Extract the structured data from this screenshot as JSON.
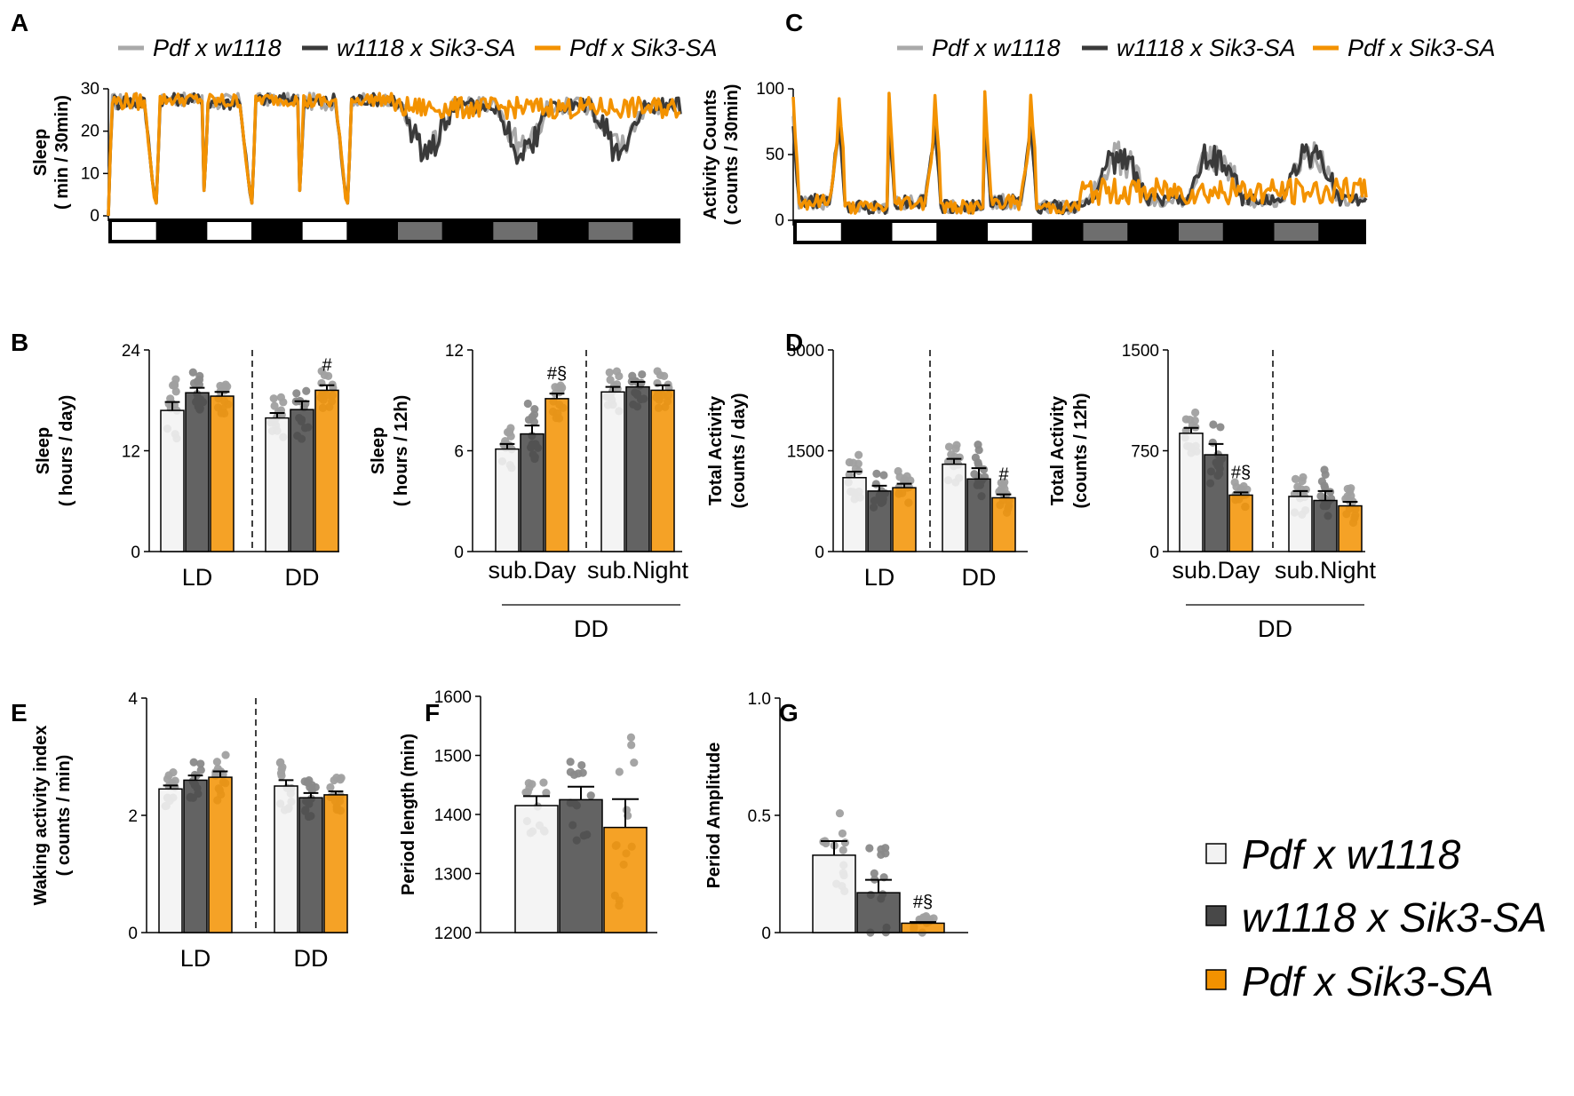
{
  "colors": {
    "pdf_w1118": "#f2f2f2",
    "w1118_sik3": "#484848",
    "pdf_sik3": "#f39200",
    "line_pdf_w1118": "#a9a9a9",
    "line_w1118_sik3": "#3a3a3a",
    "line_pdf_sik3": "#f39200",
    "dots_light": "#a0a0a0",
    "dots_dark": "#8a8a8a",
    "lightphase": "#ffffff",
    "darkphase": "#000000",
    "subjective_day": "#6e6e6e"
  },
  "panel_labels": [
    "A",
    "B",
    "C",
    "D",
    "E",
    "F",
    "G"
  ],
  "legend": {
    "genotypes": [
      "Pdf x w1118",
      "w1118 x Sik3-SA",
      "Pdf x Sik3-SA"
    ]
  },
  "chart_data": [
    {
      "id": "A",
      "type": "line",
      "title": "Sleep",
      "ylabel": "( min / 30min)",
      "ylim": [
        0,
        30
      ],
      "yticks": [
        "0",
        "10",
        "20",
        "30"
      ],
      "days_LD": 3,
      "days_DD": 3,
      "points_per_day": 48,
      "series": [
        {
          "name": "Pdf x w1118"
        },
        {
          "name": "w1118 x Sik3-SA"
        },
        {
          "name": "Pdf x Sik3-SA"
        }
      ]
    },
    {
      "id": "C",
      "type": "line",
      "title": "Activity Counts",
      "ylabel": "( counts / 30min)",
      "ylim": [
        0,
        100
      ],
      "yticks": [
        "0",
        "50",
        "100"
      ],
      "days_LD": 3,
      "days_DD": 3,
      "points_per_day": 48,
      "series": [
        {
          "name": "Pdf x w1118"
        },
        {
          "name": "w1118 x Sik3-SA"
        },
        {
          "name": "Pdf x Sik3-SA"
        }
      ]
    },
    {
      "id": "B1",
      "type": "bar",
      "title": "Sleep",
      "ylabel": "( hours / day)",
      "ylim": [
        0,
        24
      ],
      "yticks": [
        "0",
        "12",
        "24"
      ],
      "groups": [
        "LD",
        "DD"
      ],
      "series_names": [
        "Pdf x w1118",
        "w1118 x Sik3-SA",
        "Pdf x Sik3-SA"
      ],
      "values": [
        [
          16.8,
          18.9,
          18.5
        ],
        [
          15.9,
          16.9,
          19.2
        ]
      ],
      "sem": [
        [
          1.0,
          0.6,
          0.5
        ],
        [
          0.6,
          1.0,
          0.6
        ]
      ],
      "sig": [
        [
          "",
          "",
          ""
        ],
        [
          "",
          "",
          "#"
        ]
      ]
    },
    {
      "id": "B2",
      "type": "bar",
      "title": "Sleep",
      "ylabel": "( hours / 12h)",
      "ylim": [
        0,
        12
      ],
      "yticks": [
        "0",
        "6",
        "12"
      ],
      "groups": [
        "sub.Day",
        "sub.Night"
      ],
      "group_title": "DD",
      "series_names": [
        "Pdf x w1118",
        "w1118 x Sik3-SA",
        "Pdf x Sik3-SA"
      ],
      "values": [
        [
          6.1,
          7.0,
          9.1
        ],
        [
          9.5,
          9.8,
          9.6
        ]
      ],
      "sem": [
        [
          0.3,
          0.5,
          0.3
        ],
        [
          0.3,
          0.3,
          0.3
        ]
      ],
      "sig": [
        [
          "",
          "",
          "#§"
        ],
        [
          "",
          "",
          ""
        ]
      ]
    },
    {
      "id": "D1",
      "type": "bar",
      "title": "Total Activity",
      "ylabel": "(counts / day)",
      "ylim": [
        0,
        3000
      ],
      "yticks": [
        "0",
        "1500",
        "3000"
      ],
      "groups": [
        "LD",
        "DD"
      ],
      "series_names": [
        "Pdf x w1118",
        "w1118 x Sik3-SA",
        "Pdf x Sik3-SA"
      ],
      "values": [
        [
          1100,
          900,
          950
        ],
        [
          1300,
          1080,
          800
        ]
      ],
      "sem": [
        [
          90,
          80,
          60
        ],
        [
          80,
          160,
          50
        ]
      ],
      "sig": [
        [
          "",
          "",
          ""
        ],
        [
          "",
          "",
          "#"
        ]
      ]
    },
    {
      "id": "D2",
      "type": "bar",
      "title": "Total Activity",
      "ylabel": "(counts / 12h)",
      "ylim": [
        0,
        1500
      ],
      "yticks": [
        "0",
        "750",
        "1500"
      ],
      "groups": [
        "sub.Day",
        "sub.Night"
      ],
      "group_title": "DD",
      "series_names": [
        "Pdf x w1118",
        "w1118 x Sik3-SA",
        "Pdf x Sik3-SA"
      ],
      "values": [
        [
          880,
          720,
          420
        ],
        [
          410,
          380,
          340
        ]
      ],
      "sem": [
        [
          40,
          80,
          20
        ],
        [
          40,
          70,
          30
        ]
      ],
      "sig": [
        [
          "",
          "",
          "#§"
        ],
        [
          "",
          "",
          ""
        ]
      ]
    },
    {
      "id": "E",
      "type": "bar",
      "title": "Waking activity index",
      "ylabel": "( counts / min)",
      "ylim": [
        0,
        4
      ],
      "yticks": [
        "0",
        "2",
        "4"
      ],
      "groups": [
        "LD",
        "DD"
      ],
      "series_names": [
        "Pdf x w1118",
        "w1118 x Sik3-SA",
        "Pdf x Sik3-SA"
      ],
      "values": [
        [
          2.45,
          2.6,
          2.65
        ],
        [
          2.5,
          2.3,
          2.35
        ]
      ],
      "sem": [
        [
          0.06,
          0.08,
          0.1
        ],
        [
          0.1,
          0.08,
          0.06
        ]
      ],
      "sig": [
        [
          "",
          "",
          ""
        ],
        [
          "",
          "",
          ""
        ]
      ]
    },
    {
      "id": "F",
      "type": "bar",
      "title": "",
      "ylabel": "Period length (min)",
      "ylim": [
        1200,
        1600
      ],
      "yticks": [
        "1200",
        "1300",
        "1400",
        "1500",
        "1600"
      ],
      "groups": [
        ""
      ],
      "series_names": [
        "Pdf x w1118",
        "w1118 x Sik3-SA",
        "Pdf x Sik3-SA"
      ],
      "values": [
        [
          1415,
          1425,
          1378
        ]
      ],
      "sem": [
        [
          16,
          22,
          48
        ]
      ],
      "sig": [
        [
          "",
          "",
          ""
        ]
      ]
    },
    {
      "id": "G",
      "type": "bar",
      "title": "",
      "ylabel": "Period Amplitude",
      "ylim": [
        0,
        1.0
      ],
      "yticks": [
        "0",
        "0.5",
        "1.0"
      ],
      "groups": [
        ""
      ],
      "series_names": [
        "Pdf x w1118",
        "w1118 x Sik3-SA",
        "Pdf x Sik3-SA"
      ],
      "values": [
        [
          0.33,
          0.17,
          0.04
        ]
      ],
      "sem": [
        [
          0.06,
          0.055,
          0.005
        ]
      ],
      "sig": [
        [
          "",
          "",
          "#§"
        ]
      ]
    }
  ]
}
